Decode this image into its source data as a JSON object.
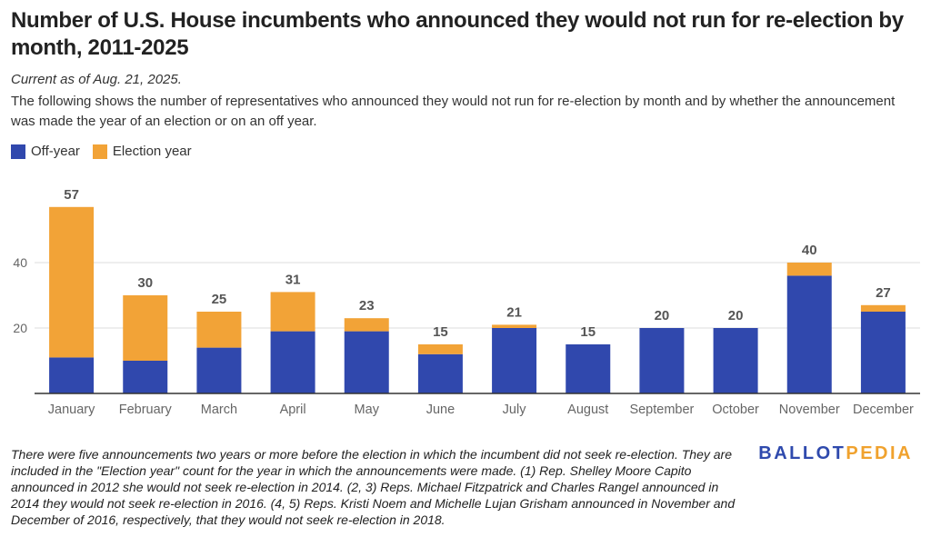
{
  "title": "Number of U.S. House incumbents who announced they would not run for re-election by month, 2011-2025",
  "date": "Current as of Aug. 21, 2025.",
  "description": "The following shows the number of representatives who announced they would not run for re-election by month and by whether the announcement was made the year of an election or on an off year.",
  "footnote": "There were five announcements two years or more before the election in which the incumbent did not seek re-election. They are included in the \"Election year\" count for the year in which the announcements were made. (1) Rep. Shelley Moore Capito announced in 2012 she would not seek re-election in 2014. (2, 3) Reps. Michael Fitzpatrick and Charles Rangel announced in 2014 they would not seek re-election in 2016. (4, 5) Reps. Kristi Noem and Michelle Lujan Grisham announced in November and December of 2016, respectively, that they would not seek re-election in 2018.",
  "logo": {
    "part1": "BALLOT",
    "part2": "PEDIA"
  },
  "colors": {
    "off_year": "#3048ad",
    "election_year": "#f2a337",
    "grid": "#dddddd",
    "axis": "#333333"
  },
  "chart_data": {
    "type": "bar",
    "stacked": true,
    "categories": [
      "January",
      "February",
      "March",
      "April",
      "May",
      "June",
      "July",
      "August",
      "September",
      "October",
      "November",
      "December"
    ],
    "series": [
      {
        "name": "Off-year",
        "color": "#3048ad",
        "values": [
          11,
          10,
          14,
          19,
          19,
          12,
          20,
          15,
          20,
          20,
          36,
          25
        ]
      },
      {
        "name": "Election year",
        "color": "#f2a337",
        "values": [
          46,
          20,
          11,
          12,
          4,
          3,
          1,
          0,
          0,
          0,
          4,
          2
        ]
      }
    ],
    "totals": [
      "57",
      "30",
      "25",
      "31",
      "23",
      "15",
      "21",
      "15",
      "20",
      "20",
      "40",
      "27"
    ],
    "yticks": [
      "20",
      "40"
    ],
    "ylim": [
      0,
      60
    ],
    "grid": true,
    "legend_position": "top-left"
  }
}
